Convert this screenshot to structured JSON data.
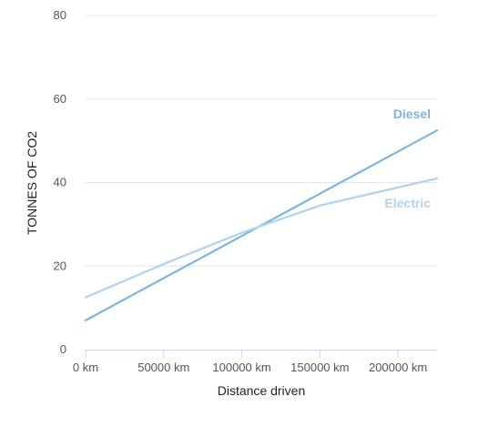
{
  "chart_data": {
    "type": "line",
    "title": "",
    "xlabel": "Distance driven",
    "ylabel": "TONNES OF CO2",
    "xlim": [
      0,
      225000
    ],
    "ylim": [
      0,
      80
    ],
    "x_ticks": [
      0,
      50000,
      100000,
      150000,
      200000
    ],
    "x_tick_labels": [
      "0 km",
      "50000 km",
      "100000 km",
      "150000 km",
      "200000 km"
    ],
    "y_ticks": [
      0,
      20,
      40,
      60,
      80
    ],
    "y_tick_labels": [
      "0",
      "20",
      "40",
      "60",
      "80"
    ],
    "grid": true,
    "legend": "inline labels at right end of lines",
    "series": [
      {
        "name": "Diesel",
        "color": "#7cb5e0",
        "x": [
          0,
          225000
        ],
        "values": [
          7,
          52.5
        ]
      },
      {
        "name": "Electric",
        "color": "#afd2f0",
        "x": [
          0,
          50000,
          100000,
          150000,
          225000
        ],
        "values": [
          12.5,
          20.5,
          28,
          34.5,
          41
        ]
      }
    ]
  }
}
